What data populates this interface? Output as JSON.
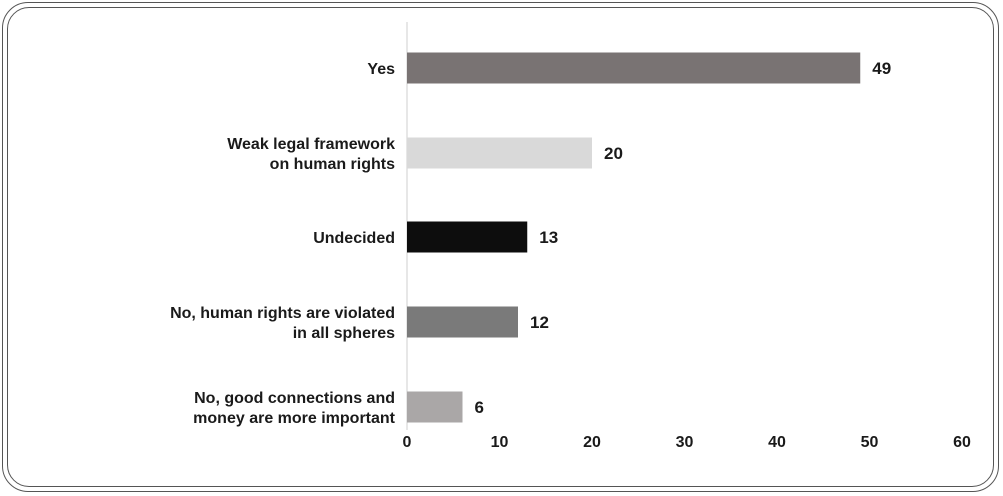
{
  "chart_data": {
    "type": "bar",
    "orientation": "horizontal",
    "categories": [
      [
        "Yes"
      ],
      [
        "Weak legal framework",
        "on human rights"
      ],
      [
        "Undecided"
      ],
      [
        "No, human rights are violated",
        "in all spheres"
      ],
      [
        "No, good connections and",
        "money are more important"
      ]
    ],
    "values": [
      49,
      20,
      13,
      12,
      6
    ],
    "value_labels": [
      "49",
      "20",
      "13",
      "12",
      "6"
    ],
    "bar_colors": [
      "#797373",
      "#d9d9d9",
      "#0d0d0d",
      "#7a7a7a",
      "#aaa7a7"
    ],
    "xlim": [
      0,
      60
    ],
    "x_ticks": [
      0,
      10,
      20,
      30,
      40,
      50,
      60
    ],
    "x_tick_labels": [
      "0",
      "10",
      "20",
      "30",
      "40",
      "50",
      "60"
    ],
    "title": "",
    "xlabel": "",
    "ylabel": "",
    "grid": false,
    "legend": "none"
  }
}
